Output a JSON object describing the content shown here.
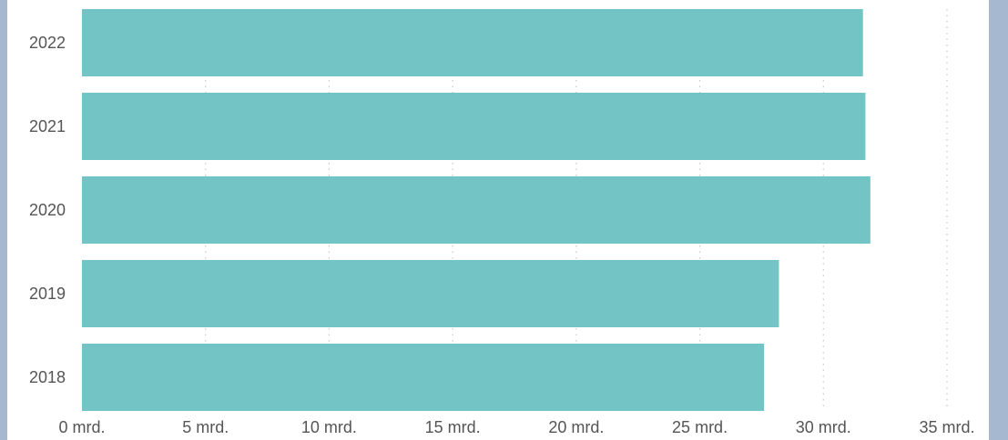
{
  "chart_data": {
    "type": "bar",
    "orientation": "horizontal",
    "title": "",
    "xlabel": "",
    "ylabel": "",
    "categories": [
      "2022",
      "2021",
      "2020",
      "2019",
      "2018"
    ],
    "values": [
      31.6,
      31.7,
      31.9,
      28.2,
      27.6
    ],
    "value_unit": "mrd.",
    "xlim": [
      0,
      35
    ],
    "x_ticks": [
      0,
      5,
      10,
      15,
      20,
      25,
      30,
      35
    ],
    "x_tick_labels": [
      "0 mrd.",
      "5 mrd.",
      "10 mrd.",
      "15 mrd.",
      "20 mrd.",
      "25 mrd.",
      "30 mrd.",
      "35 mrd."
    ],
    "grid": "vertical-dotted",
    "bar_color": "#73c4c4",
    "grid_color": "#c8c8c8",
    "text_color": "#555555"
  }
}
